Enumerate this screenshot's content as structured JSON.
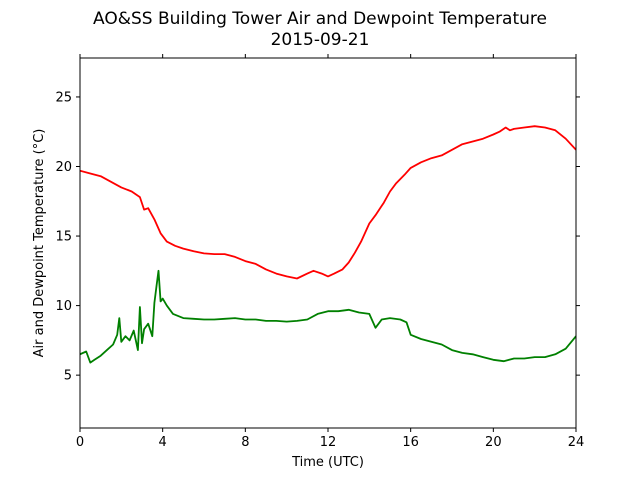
{
  "chart_data": {
    "type": "line",
    "title": "AO&SS Building Tower Air and Dewpoint Temperature",
    "subtitle": "2015-09-21",
    "xlabel": "Time (UTC)",
    "ylabel": "Air and Dewpoint Temperature (°C)",
    "xlim": [
      0,
      24
    ],
    "ylim": [
      1.2,
      27.8
    ],
    "xticks": [
      0,
      4,
      8,
      12,
      16,
      20,
      24
    ],
    "yticks": [
      5,
      10,
      15,
      20,
      25
    ],
    "grid": false,
    "series": [
      {
        "color": "#ff0000",
        "x": [
          0,
          0.5,
          1.0,
          1.5,
          2.0,
          2.5,
          2.9,
          3.1,
          3.3,
          3.6,
          3.9,
          4.2,
          4.6,
          5.0,
          5.5,
          6.0,
          6.5,
          7.0,
          7.5,
          8.0,
          8.5,
          9.0,
          9.5,
          10.0,
          10.5,
          11.0,
          11.3,
          11.7,
          12.0,
          12.3,
          12.7,
          13.0,
          13.3,
          13.6,
          14.0,
          14.3,
          14.7,
          15.0,
          15.3,
          15.7,
          16.0,
          16.5,
          17.0,
          17.5,
          18.0,
          18.5,
          19.0,
          19.5,
          20.0,
          20.3,
          20.6,
          20.8,
          21.0,
          21.5,
          22.0,
          22.5,
          23.0,
          23.5,
          24.0
        ],
        "y": [
          19.7,
          19.5,
          19.3,
          18.9,
          18.5,
          18.2,
          17.8,
          16.9,
          17.0,
          16.2,
          15.2,
          14.6,
          14.3,
          14.1,
          13.9,
          13.75,
          13.7,
          13.7,
          13.5,
          13.2,
          13.0,
          12.6,
          12.3,
          12.1,
          11.95,
          12.3,
          12.5,
          12.3,
          12.1,
          12.3,
          12.6,
          13.1,
          13.8,
          14.6,
          15.9,
          16.5,
          17.4,
          18.2,
          18.8,
          19.4,
          19.9,
          20.3,
          20.6,
          20.8,
          21.2,
          21.6,
          21.8,
          22.0,
          22.3,
          22.5,
          22.8,
          22.6,
          22.7,
          22.8,
          22.9,
          22.8,
          22.6,
          22.0,
          21.2
        ]
      },
      {
        "color": "#008000",
        "x": [
          0,
          0.3,
          0.5,
          0.7,
          1.0,
          1.3,
          1.6,
          1.8,
          1.9,
          2.0,
          2.2,
          2.4,
          2.6,
          2.8,
          2.9,
          3.0,
          3.1,
          3.3,
          3.5,
          3.6,
          3.7,
          3.8,
          3.9,
          4.0,
          4.2,
          4.5,
          5.0,
          5.5,
          6.0,
          6.5,
          7.0,
          7.5,
          8.0,
          8.5,
          9.0,
          9.5,
          10.0,
          10.5,
          11.0,
          11.5,
          12.0,
          12.5,
          13.0,
          13.5,
          14.0,
          14.3,
          14.6,
          15.0,
          15.5,
          15.8,
          16.0,
          16.5,
          17.0,
          17.5,
          18.0,
          18.5,
          19.0,
          19.5,
          20.0,
          20.5,
          21.0,
          21.5,
          22.0,
          22.5,
          23.0,
          23.5,
          24.0
        ],
        "y": [
          6.5,
          6.7,
          5.9,
          6.1,
          6.4,
          6.8,
          7.2,
          7.9,
          9.1,
          7.4,
          7.8,
          7.5,
          8.2,
          6.8,
          9.9,
          7.3,
          8.3,
          8.7,
          7.8,
          10.2,
          11.4,
          12.5,
          10.3,
          10.5,
          10.0,
          9.4,
          9.1,
          9.05,
          9.0,
          9.0,
          9.05,
          9.1,
          9.0,
          9.0,
          8.9,
          8.9,
          8.85,
          8.9,
          9.0,
          9.4,
          9.6,
          9.6,
          9.7,
          9.5,
          9.4,
          8.4,
          9.0,
          9.1,
          9.0,
          8.8,
          7.9,
          7.6,
          7.4,
          7.2,
          6.8,
          6.6,
          6.5,
          6.3,
          6.1,
          6.0,
          6.2,
          6.2,
          6.3,
          6.3,
          6.5,
          6.9,
          7.8
        ]
      }
    ]
  }
}
